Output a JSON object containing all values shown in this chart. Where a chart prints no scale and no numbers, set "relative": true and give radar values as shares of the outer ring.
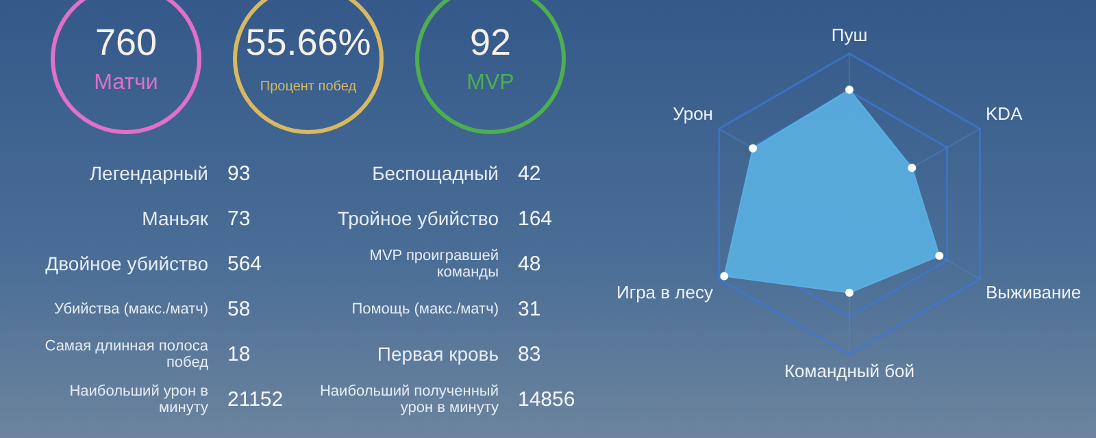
{
  "chart_data": [
    {
      "type": "other",
      "categories": [
        "Матчи",
        "Процент побед",
        "MVP"
      ],
      "value_labels": [
        "760",
        "55.66%",
        "92"
      ],
      "colors": [
        "#e070c8",
        "#d8b860",
        "#4caf50"
      ]
    },
    {
      "type": "other",
      "categories": [
        "Легендарный",
        "Беспощадный",
        "Маньяк",
        "Тройное убийство",
        "Двойное убийство",
        "MVP проигравшей команды",
        "Убийства (макс./матч)",
        "Помощь (макс./матч)",
        "Самая длинная полоса побед",
        "Первая кровь",
        "Наибольший урон в минуту",
        "Наибольший полученный урон в минуту"
      ],
      "values": [
        93,
        42,
        73,
        164,
        564,
        48,
        58,
        31,
        18,
        83,
        21152,
        14856
      ],
      "data_labels": true
    },
    {
      "type": "radar",
      "relative": true,
      "categories": [
        "Пуш",
        "KDA",
        "Выживание",
        "Командный бой",
        "Игра в лесу",
        "Урон"
      ],
      "series": [
        {
          "color": "#5ab0e2",
          "values": [
            0.76,
            0.48,
            0.69,
            0.59,
            0.96,
            0.74
          ]
        }
      ]
    }
  ]
}
